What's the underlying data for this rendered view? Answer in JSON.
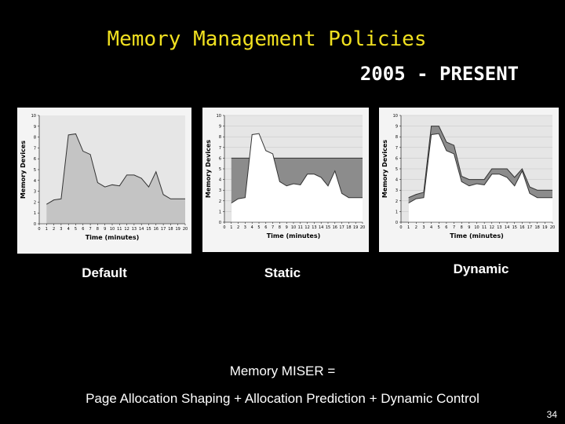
{
  "slide": {
    "title": "Memory Management Policies",
    "subtitle": "2005 - PRESENT",
    "captions": [
      "Default",
      "Static",
      "Dynamic"
    ],
    "footer_line1": "Memory MISER =",
    "footer_line2": "Page Allocation Shaping + Allocation Prediction + Dynamic Control",
    "page_number": "34"
  },
  "chart_data": [
    {
      "type": "area",
      "xlabel": "Time (minutes)",
      "ylabel": "Memory Devices",
      "x": [
        1,
        2,
        3,
        4,
        5,
        6,
        7,
        8,
        9,
        10,
        11,
        12,
        13,
        14,
        15,
        16,
        17,
        18,
        19,
        20
      ],
      "series": [
        {
          "color": "#c4c4c4",
          "values": [
            1.8,
            2.2,
            2.3,
            8.2,
            8.3,
            6.7,
            6.4,
            3.8,
            3.4,
            3.6,
            3.5,
            4.5,
            4.5,
            4.2,
            3.4,
            4.8,
            2.7,
            2.3,
            2.3,
            2.3
          ]
        }
      ],
      "xlim": [
        0,
        20
      ],
      "xticks": [
        0,
        1,
        2,
        3,
        4,
        5,
        6,
        7,
        8,
        9,
        10,
        11,
        12,
        13,
        14,
        15,
        16,
        17,
        18,
        19,
        20
      ],
      "ylim": [
        0,
        10
      ],
      "yticks": [
        0,
        1,
        2,
        3,
        4,
        5,
        6,
        7,
        8,
        9,
        10
      ],
      "grid": false
    },
    {
      "type": "area",
      "xlabel": "Time (minutes)",
      "ylabel": "Memory Devices",
      "x": [
        1,
        2,
        3,
        4,
        5,
        6,
        7,
        8,
        9,
        10,
        11,
        12,
        13,
        14,
        15,
        16,
        17,
        18,
        19,
        20
      ],
      "series": [
        {
          "color": "#8c8c8c",
          "values": [
            6,
            6,
            6,
            6,
            6,
            6,
            6,
            6,
            6,
            6,
            6,
            6,
            6,
            6,
            6,
            6,
            6,
            6,
            6,
            6
          ]
        },
        {
          "color": "#ffffff",
          "values": [
            1.8,
            2.2,
            2.3,
            8.2,
            8.3,
            6.7,
            6.4,
            3.8,
            3.4,
            3.6,
            3.5,
            4.5,
            4.5,
            4.2,
            3.4,
            4.8,
            2.7,
            2.3,
            2.3,
            2.3
          ]
        }
      ],
      "xlim": [
        0,
        20
      ],
      "xticks": [
        0,
        1,
        2,
        3,
        4,
        5,
        6,
        7,
        8,
        9,
        10,
        11,
        12,
        13,
        14,
        15,
        16,
        17,
        18,
        19,
        20
      ],
      "ylim": [
        0,
        10
      ],
      "yticks": [
        0,
        1,
        2,
        3,
        4,
        5,
        6,
        7,
        8,
        9,
        10
      ],
      "grid": true
    },
    {
      "type": "area",
      "xlabel": "Time (minutes)",
      "ylabel": "Memory Devices",
      "x": [
        1,
        2,
        3,
        4,
        5,
        6,
        7,
        8,
        9,
        10,
        11,
        12,
        13,
        14,
        15,
        16,
        17,
        18,
        19,
        20
      ],
      "series": [
        {
          "color": "#8c8c8c",
          "values": [
            2.3,
            2.6,
            2.8,
            9,
            9,
            7.5,
            7.2,
            4.3,
            4,
            4,
            4,
            5,
            5,
            5,
            4.2,
            5,
            3.3,
            3,
            3,
            3
          ]
        },
        {
          "color": "#ffffff",
          "values": [
            1.8,
            2.2,
            2.3,
            8.2,
            8.3,
            6.7,
            6.4,
            3.8,
            3.4,
            3.6,
            3.5,
            4.5,
            4.5,
            4.2,
            3.4,
            4.8,
            2.7,
            2.3,
            2.3,
            2.3
          ]
        }
      ],
      "xlim": [
        0,
        20
      ],
      "xticks": [
        0,
        1,
        2,
        3,
        4,
        5,
        6,
        7,
        8,
        9,
        10,
        11,
        12,
        13,
        14,
        15,
        16,
        17,
        18,
        19,
        20
      ],
      "ylim": [
        0,
        10
      ],
      "yticks": [
        0,
        1,
        2,
        3,
        4,
        5,
        6,
        7,
        8,
        9,
        10
      ],
      "grid": true
    }
  ]
}
